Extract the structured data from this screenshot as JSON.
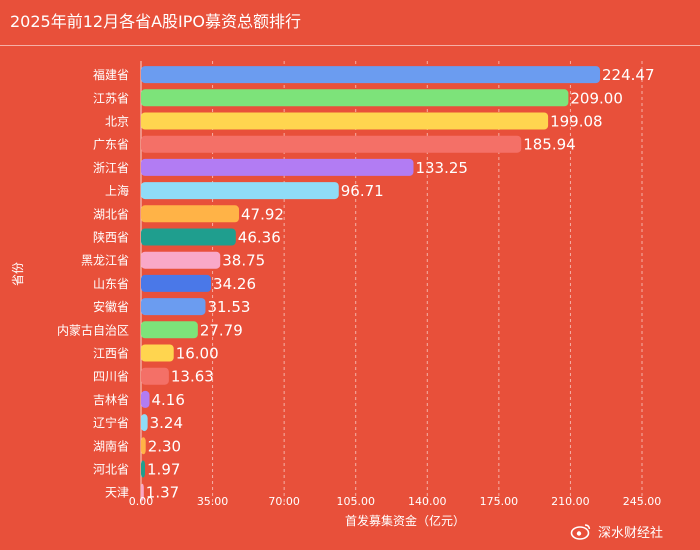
{
  "chart_data": {
    "type": "bar",
    "orientation": "horizontal",
    "title": "2025年前12月各省A股IPO募资总额排行",
    "xlabel": "首发募集资金（亿元）",
    "ylabel": "省份",
    "xlim": [
      0,
      245
    ],
    "xticks": [
      "0.00",
      "35.00",
      "70.00",
      "105.00",
      "140.00",
      "175.00",
      "210.00",
      "245.00"
    ],
    "grid": "vertical-dashed",
    "categories": [
      "福建省",
      "江苏省",
      "北京",
      "广东省",
      "浙江省",
      "上海",
      "湖北省",
      "陕西省",
      "黑龙江省",
      "山东省",
      "安徽省",
      "内蒙古自治区",
      "江西省",
      "四川省",
      "吉林省",
      "辽宁省",
      "湖南省",
      "河北省",
      "天津"
    ],
    "values": [
      224.47,
      209.0,
      199.08,
      185.94,
      133.25,
      96.71,
      47.92,
      46.36,
      38.75,
      34.26,
      31.53,
      27.79,
      16.0,
      13.63,
      4.16,
      3.24,
      2.3,
      1.97,
      1.37
    ],
    "value_labels": [
      "224.47",
      "209.00",
      "199.08",
      "185.94",
      "133.25",
      "96.71",
      "47.92",
      "46.36",
      "38.75",
      "34.26",
      "31.53",
      "27.79",
      "16.00",
      "13.63",
      "4.16",
      "3.24",
      "2.30",
      "1.97",
      "1.37"
    ],
    "colors": [
      "#6b9cf0",
      "#7de37a",
      "#ffd54f",
      "#f47067",
      "#b27cf3",
      "#8fdcf7",
      "#ffb347",
      "#1f9e8e",
      "#f9a8c8",
      "#4a78e8",
      "#6b9cf0",
      "#7de37a",
      "#ffd54f",
      "#f47067",
      "#b27cf3",
      "#8fdcf7",
      "#ffb347",
      "#1f9e8e",
      "#f9a8c8"
    ]
  },
  "watermark": {
    "icon": "weibo-icon",
    "text": "深水财经社"
  }
}
